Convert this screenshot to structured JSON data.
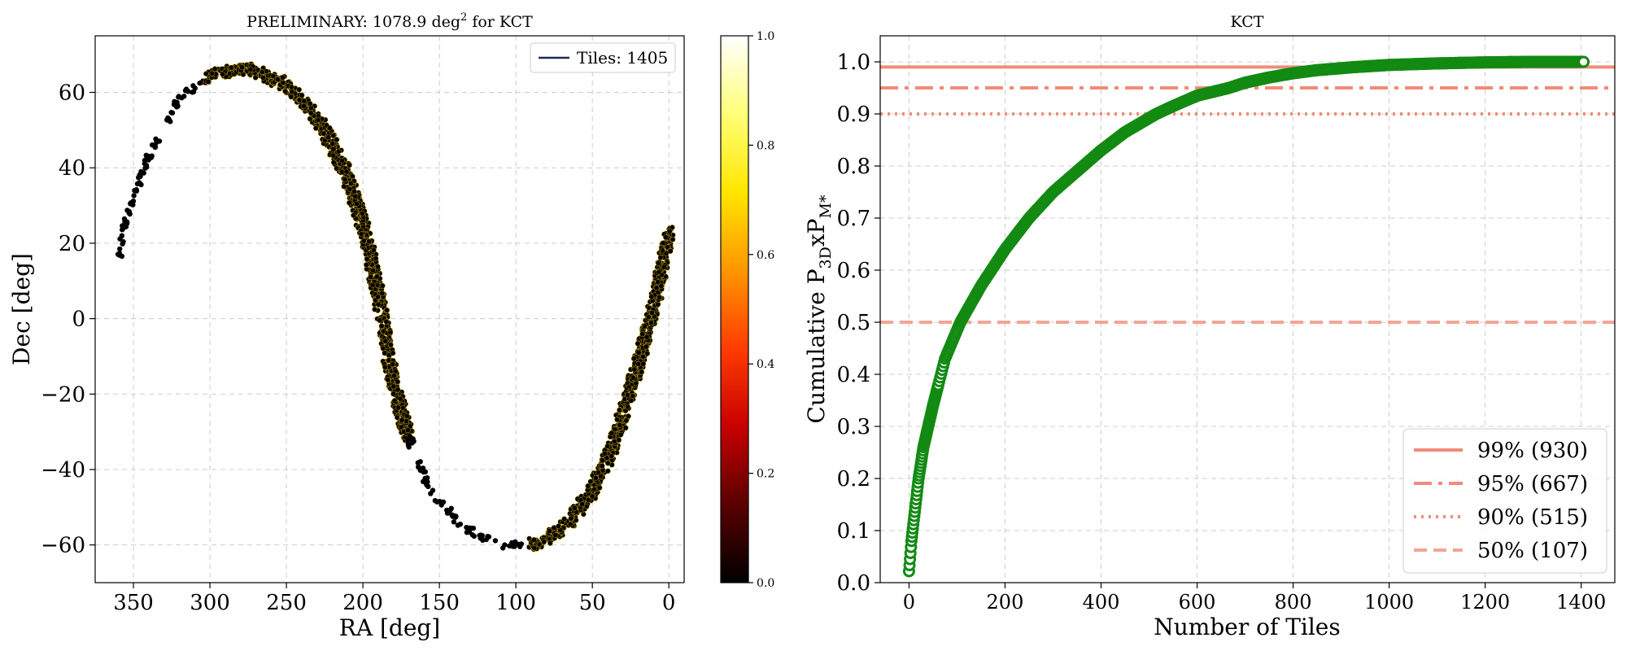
{
  "chart_data": [
    {
      "type": "scatter",
      "title_prefix": "PRELIMINARY: 1078.9 deg",
      "title_sup": "2",
      "title_suffix": " for KCT",
      "xlabel": "RA [deg]",
      "ylabel": "Dec [deg]",
      "xlim": [
        375,
        -10
      ],
      "ylim": [
        -70,
        75
      ],
      "x_ticks": [
        350,
        300,
        250,
        200,
        150,
        100,
        50,
        0
      ],
      "y_ticks": [
        -60,
        -40,
        -20,
        0,
        20,
        40,
        60
      ],
      "grid": true,
      "legend": {
        "placement": "top-right",
        "label": "Tiles: 1405",
        "line_color": "#1f2a5a"
      },
      "point_color": "#000000",
      "edge_color": "#ffcc00",
      "track_points": [
        {
          "ra": 360,
          "dec": 15
        },
        {
          "ra": 355,
          "dec": 26
        },
        {
          "ra": 345,
          "dec": 38
        },
        {
          "ra": 332,
          "dec": 50
        },
        {
          "ra": 318,
          "dec": 59
        },
        {
          "ra": 300,
          "dec": 64
        },
        {
          "ra": 285,
          "dec": 66
        },
        {
          "ra": 270,
          "dec": 66
        },
        {
          "ra": 255,
          "dec": 63
        },
        {
          "ra": 240,
          "dec": 58
        },
        {
          "ra": 225,
          "dec": 50
        },
        {
          "ra": 210,
          "dec": 38
        },
        {
          "ra": 198,
          "dec": 22
        },
        {
          "ra": 188,
          "dec": 2
        },
        {
          "ra": 180,
          "dec": -18
        },
        {
          "ra": 170,
          "dec": -32
        },
        {
          "ra": 155,
          "dec": -46
        },
        {
          "ra": 135,
          "dec": -55
        },
        {
          "ra": 110,
          "dec": -60
        },
        {
          "ra": 90,
          "dec": -60
        },
        {
          "ra": 70,
          "dec": -56
        },
        {
          "ra": 50,
          "dec": -46
        },
        {
          "ra": 35,
          "dec": -32
        },
        {
          "ra": 22,
          "dec": -15
        },
        {
          "ra": 12,
          "dec": 0
        },
        {
          "ra": 5,
          "dec": 12
        },
        {
          "ra": 0,
          "dec": 23
        }
      ],
      "colorbar": {
        "min": 0.0,
        "max": 1.0,
        "ticks": [
          "0.0",
          "0.2",
          "0.4",
          "0.6",
          "0.8",
          "1.0"
        ],
        "colormap": [
          "#000000",
          "#5a0000",
          "#c80000",
          "#ff3c00",
          "#ff9600",
          "#ffe600",
          "#ffff78",
          "#ffffff"
        ]
      }
    },
    {
      "type": "line",
      "title": "KCT",
      "xlabel": "Number of Tiles",
      "ylabel_prefix": "Cumulative P",
      "ylabel_sub1": "3D",
      "ylabel_mid": "xP",
      "ylabel_sub2": "M*",
      "xlim": [
        -60,
        1470
      ],
      "ylim": [
        0.0,
        1.05
      ],
      "x_ticks": [
        0,
        200,
        400,
        600,
        800,
        1000,
        1200,
        1400
      ],
      "y_ticks": [
        "0.0",
        "0.1",
        "0.2",
        "0.3",
        "0.4",
        "0.5",
        "0.6",
        "0.7",
        "0.8",
        "0.9",
        "1.0"
      ],
      "grid": true,
      "marker_color": "#138a13",
      "series": [
        {
          "x": [
            0,
            5,
            10,
            20,
            30,
            50,
            75,
            107,
            150,
            200,
            250,
            300,
            350,
            400,
            450,
            515,
            550,
            600,
            667,
            700,
            750,
            800,
            850,
            930,
            1000,
            1100,
            1200,
            1300,
            1405
          ],
          "y": [
            0.022,
            0.08,
            0.12,
            0.2,
            0.26,
            0.34,
            0.43,
            0.5,
            0.57,
            0.64,
            0.7,
            0.75,
            0.79,
            0.83,
            0.865,
            0.9,
            0.915,
            0.935,
            0.95,
            0.96,
            0.97,
            0.978,
            0.984,
            0.99,
            0.994,
            0.997,
            0.999,
            1.0,
            1.0
          ]
        }
      ],
      "hlines": [
        {
          "y": 0.99,
          "label": "99% (930)",
          "style": "solid",
          "color": "#f08c78",
          "opacity": 1.0
        },
        {
          "y": 0.95,
          "label": "95% (667)",
          "style": "dashdot",
          "color": "#f08c78",
          "opacity": 1.0
        },
        {
          "y": 0.9,
          "label": "90% (515)",
          "style": "dotted",
          "color": "#f08c78",
          "opacity": 1.0
        },
        {
          "y": 0.5,
          "label": "50% (107)",
          "style": "dashed",
          "color": "#f4a496",
          "opacity": 1.0
        }
      ],
      "legend": {
        "placement": "bottom-right"
      }
    }
  ]
}
